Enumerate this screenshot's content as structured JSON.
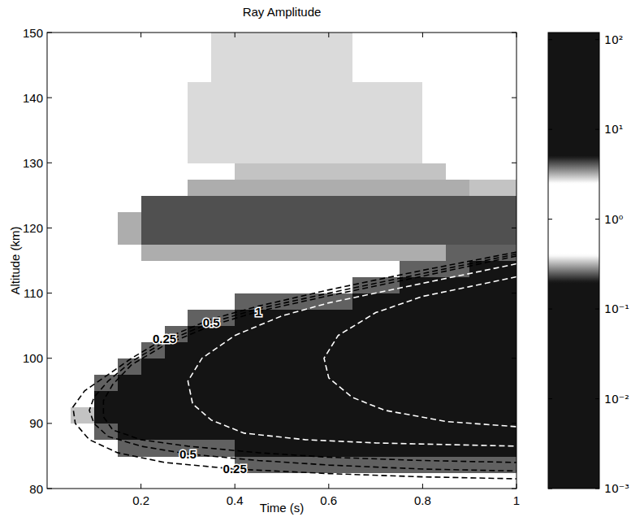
{
  "chart_data": {
    "type": "heatmap",
    "title": "Ray Amplitude",
    "x_label": "Time (s)",
    "y_label": "Altitude (km)",
    "xlim": [
      0,
      1
    ],
    "ylim": [
      80,
      150
    ],
    "xticks": [
      0.2,
      0.4,
      0.6,
      0.8,
      1
    ],
    "yticks": [
      80,
      90,
      100,
      110,
      120,
      130,
      140,
      150
    ],
    "cells": {
      "x_edges": [
        0,
        0.05,
        0.1,
        0.15,
        0.2,
        0.25,
        0.3,
        0.35,
        0.4,
        0.45,
        0.5,
        0.55,
        0.6,
        0.65,
        0.7,
        0.75,
        0.8,
        0.85,
        0.9,
        0.95,
        1
      ],
      "y_edges": [
        80,
        82.5,
        85,
        87.5,
        90,
        92.5,
        95,
        97.5,
        100,
        102.5,
        105,
        107.5,
        110,
        112.5,
        115,
        117.5,
        120,
        122.5,
        125,
        127.5,
        130,
        132.5,
        135,
        137.5,
        140,
        142.5,
        145,
        147.5,
        150
      ],
      "values": [
        [
          1,
          1,
          1,
          1,
          1,
          1,
          1,
          1,
          1,
          1,
          1,
          1,
          1,
          1,
          1,
          1,
          1,
          1,
          1,
          1
        ],
        [
          1,
          1,
          1,
          1,
          1,
          1,
          1,
          1,
          4,
          4,
          4,
          4,
          4,
          4,
          4,
          4,
          4,
          4,
          4,
          4
        ],
        [
          1,
          1,
          1,
          4,
          4,
          4,
          4,
          4,
          50,
          50,
          50,
          50,
          50,
          50,
          50,
          50,
          50,
          50,
          50,
          50
        ],
        [
          1,
          1,
          4,
          50,
          50,
          50,
          50,
          50,
          50,
          50,
          50,
          50,
          50,
          50,
          50,
          50,
          50,
          50,
          50,
          50
        ],
        [
          1,
          3,
          50,
          50,
          50,
          50,
          50,
          50,
          50,
          50,
          50,
          50,
          50,
          50,
          50,
          50,
          50,
          50,
          50,
          50
        ],
        [
          1,
          1,
          50,
          50,
          50,
          50,
          50,
          50,
          50,
          50,
          50,
          50,
          50,
          50,
          50,
          50,
          50,
          50,
          50,
          50
        ],
        [
          1,
          1,
          4,
          50,
          50,
          50,
          50,
          50,
          50,
          50,
          50,
          50,
          50,
          50,
          50,
          50,
          50,
          50,
          50,
          50
        ],
        [
          1,
          1,
          1,
          4,
          50,
          50,
          50,
          50,
          50,
          50,
          50,
          50,
          50,
          50,
          50,
          50,
          50,
          50,
          50,
          50
        ],
        [
          1,
          1,
          1,
          1,
          4,
          50,
          50,
          50,
          50,
          50,
          50,
          50,
          50,
          50,
          50,
          50,
          50,
          50,
          50,
          50
        ],
        [
          1,
          1,
          1,
          1,
          1,
          4,
          50,
          50,
          50,
          50,
          50,
          50,
          50,
          50,
          50,
          50,
          50,
          50,
          50,
          50
        ],
        [
          1,
          1,
          1,
          1,
          1,
          1,
          4,
          4,
          50,
          50,
          50,
          50,
          50,
          50,
          50,
          50,
          50,
          50,
          50,
          50
        ],
        [
          1,
          1,
          1,
          1,
          1,
          1,
          1,
          1,
          4,
          4,
          4,
          4,
          4,
          50,
          50,
          50,
          50,
          50,
          50,
          50
        ],
        [
          1,
          1,
          1,
          1,
          1,
          1,
          1,
          1,
          1,
          1,
          1,
          1,
          1,
          4,
          4,
          50,
          50,
          50,
          50,
          50
        ],
        [
          1,
          1,
          1,
          1,
          1,
          1,
          1,
          1,
          1,
          1,
          1,
          1,
          1,
          1,
          1,
          4,
          4,
          4,
          50,
          50
        ],
        [
          1,
          1,
          1,
          1,
          3.2,
          3.2,
          3.2,
          3.2,
          3.2,
          3.2,
          3.2,
          3.2,
          3.2,
          3.2,
          3.2,
          3.2,
          3.2,
          4,
          4,
          4
        ],
        [
          1,
          1,
          1,
          3.2,
          4.2,
          4.2,
          4.2,
          4.2,
          4.2,
          4.2,
          4.2,
          4.2,
          4.2,
          4.2,
          4.2,
          4.2,
          4.2,
          4.2,
          4.2,
          4.2
        ],
        [
          1,
          1,
          1,
          3.2,
          4.2,
          4.2,
          4.2,
          4.2,
          4.2,
          4.2,
          4.2,
          4.2,
          4.2,
          4.2,
          4.2,
          4.2,
          4.2,
          4.2,
          4.2,
          4.2
        ],
        [
          1,
          1,
          1,
          1,
          4.2,
          4.2,
          4.2,
          4.2,
          4.2,
          4.2,
          4.2,
          4.2,
          4.2,
          4.2,
          4.2,
          4.2,
          4.2,
          4.2,
          4.2,
          4.2
        ],
        [
          1,
          1,
          1,
          1,
          1,
          1,
          3.2,
          3.2,
          3.2,
          3.2,
          3.2,
          3.2,
          3.2,
          3.2,
          3.2,
          3.2,
          3.2,
          3.2,
          3,
          3
        ],
        [
          1,
          1,
          1,
          1,
          1,
          1,
          1,
          1,
          3,
          3,
          3,
          3,
          3,
          3,
          3,
          3,
          3,
          1,
          1,
          1
        ],
        [
          1,
          1,
          1,
          1,
          1,
          1,
          2.8,
          2.8,
          2.8,
          2.8,
          2.8,
          2.8,
          2.8,
          2.8,
          2.8,
          2.8,
          1,
          1,
          1,
          1
        ],
        [
          1,
          1,
          1,
          1,
          1,
          1,
          2.8,
          2.8,
          2.8,
          2.8,
          2.8,
          2.8,
          2.8,
          2.8,
          2.8,
          2.8,
          1,
          1,
          1,
          1
        ],
        [
          1,
          1,
          1,
          1,
          1,
          1,
          2.8,
          2.8,
          2.8,
          2.8,
          2.8,
          2.8,
          2.8,
          2.8,
          2.8,
          2.8,
          1,
          1,
          1,
          1
        ],
        [
          1,
          1,
          1,
          1,
          1,
          1,
          2.8,
          2.8,
          2.8,
          2.8,
          2.8,
          2.8,
          2.8,
          2.8,
          2.8,
          2.8,
          1,
          1,
          1,
          1
        ],
        [
          1,
          1,
          1,
          1,
          1,
          1,
          2.8,
          2.8,
          2.8,
          2.8,
          2.8,
          2.8,
          2.8,
          2.8,
          2.8,
          2.8,
          1,
          1,
          1,
          1
        ],
        [
          1,
          1,
          1,
          1,
          1,
          1,
          1,
          2.8,
          2.8,
          2.8,
          2.8,
          2.8,
          2.8,
          1,
          1,
          1,
          1,
          1,
          1,
          1
        ],
        [
          1,
          1,
          1,
          1,
          1,
          1,
          1,
          2.8,
          2.8,
          2.8,
          2.8,
          2.8,
          2.8,
          1,
          1,
          1,
          1,
          1,
          1,
          1
        ],
        [
          1,
          1,
          1,
          1,
          1,
          1,
          1,
          2.8,
          2.8,
          2.8,
          2.8,
          2.8,
          2.8,
          1,
          1,
          1,
          1,
          1,
          1,
          1
        ]
      ]
    },
    "colorbar": {
      "lim": [
        0.001,
        120
      ],
      "log": true,
      "ticks": [
        {
          "value": 0.001,
          "label": "10⁻³"
        },
        {
          "value": 0.01,
          "label": "10⁻²"
        },
        {
          "value": 0.1,
          "label": "10⁻¹"
        },
        {
          "value": 1,
          "label": "10⁰"
        },
        {
          "value": 10,
          "label": "10¹"
        },
        {
          "value": 100,
          "label": "10²"
        }
      ]
    },
    "contours": [
      {
        "labels": [
          "0.25",
          "0.25"
        ],
        "color": "#000000",
        "line_style": "dashed",
        "x": [
          1,
          0.8,
          0.6,
          0.45,
          0.35,
          0.25,
          0.18,
          0.12,
          0.08,
          0.055,
          0.06,
          0.09,
          0.15,
          0.25,
          0.4,
          0.6,
          0.8,
          1
        ],
        "y": [
          116.3,
          113.5,
          110.5,
          108,
          106,
          103,
          100,
          97,
          95,
          92.5,
          90,
          87.5,
          85.5,
          84,
          83,
          82.3,
          81.8,
          81.5
        ]
      },
      {
        "labels": [
          "0.5",
          "0.5"
        ],
        "color": "#000000",
        "line_style": "dashed",
        "x": [
          1,
          0.8,
          0.6,
          0.45,
          0.35,
          0.25,
          0.18,
          0.13,
          0.1,
          0.09,
          0.1,
          0.13,
          0.2,
          0.3,
          0.45,
          0.6,
          0.8,
          1
        ],
        "y": [
          116,
          113,
          110,
          107.6,
          105.5,
          102.5,
          99.5,
          96.5,
          94,
          92,
          90,
          88,
          86.5,
          85.3,
          84.3,
          83.6,
          83,
          82.7
        ]
      },
      {
        "labels": [
          "1"
        ],
        "color": "#000000",
        "line_style": "dashed",
        "x": [
          1,
          0.8,
          0.6,
          0.45,
          0.35,
          0.25,
          0.18,
          0.14,
          0.12,
          0.12,
          0.14,
          0.2,
          0.3,
          0.45,
          0.6,
          0.8,
          1
        ],
        "y": [
          115.7,
          112.6,
          109.6,
          107.2,
          105,
          102,
          99,
          96,
          93.5,
          91,
          89,
          87.5,
          86.5,
          85.5,
          84.8,
          84.3,
          84
        ]
      },
      {
        "color": "#ffffff",
        "line_style": "dashed",
        "x": [
          1,
          0.8,
          0.6,
          0.5,
          0.4,
          0.33,
          0.3,
          0.31,
          0.35,
          0.42,
          0.55,
          0.7,
          1
        ],
        "y": [
          114.5,
          111.5,
          108.5,
          106.5,
          103.5,
          100,
          96.5,
          93,
          90.5,
          88.5,
          87.5,
          87,
          86.5
        ]
      },
      {
        "color": "#ffffff",
        "line_style": "dashed",
        "x": [
          1,
          0.9,
          0.8,
          0.7,
          0.62,
          0.59,
          0.6,
          0.65,
          0.72,
          0.85,
          1
        ],
        "y": [
          112.5,
          111,
          109.5,
          107,
          103.5,
          100,
          97,
          94,
          92,
          90.3,
          89.5
        ]
      }
    ]
  }
}
